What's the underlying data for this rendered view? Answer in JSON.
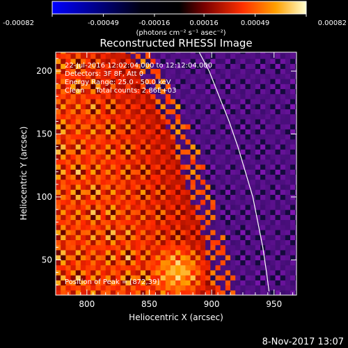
{
  "chart_data": {
    "type": "heatmap",
    "title": "Reconstructed RHESSI Image",
    "xlabel": "Heliocentric X (arcsec)",
    "ylabel": "Heliocentric Y (arcsec)",
    "x_ticks": [
      800,
      850,
      900,
      950
    ],
    "y_ticks": [
      50,
      100,
      150,
      200
    ],
    "xlim": [
      775,
      968
    ],
    "ylim": [
      22,
      215
    ],
    "colorbar": {
      "ticks": [
        "-0.00082",
        "-0.00049",
        "-0.00016",
        "0.00016",
        "0.00049",
        "0.00082"
      ],
      "range": [
        -0.00082,
        0.00082
      ],
      "units": "(photons cm⁻² s⁻¹ asec⁻²)",
      "colormap": [
        "#0000ff",
        "#000000",
        "#7a0000",
        "#ff3000",
        "#ffa000",
        "#ffffd0"
      ]
    },
    "annotations": [
      "22-Jul-2016 12:02:04.000 to 12:12:04.000",
      "Detectors: 3F 8F, Att 0",
      "Energy Range: 25.0 - 50.0 keV",
      "Clean     Total counts: 2.86E+03"
    ],
    "peak_label": "Position of Peak = [872,39]",
    "limb_curve": [
      [
        946,
        25
      ],
      [
        944,
        40
      ],
      [
        941,
        60
      ],
      [
        937,
        80
      ],
      [
        933,
        100
      ],
      [
        927,
        120
      ],
      [
        921,
        140
      ],
      [
        914,
        160
      ],
      [
        906,
        180
      ],
      [
        898,
        200
      ],
      [
        890,
        215
      ]
    ],
    "pixel_size_arcsec": 4,
    "features": {
      "bright_region_edge": [
        [
          900,
          25
        ],
        [
          893,
          60
        ],
        [
          880,
          100
        ],
        [
          868,
          140
        ],
        [
          850,
          180
        ],
        [
          830,
          215
        ]
      ],
      "peak": [
        872,
        39
      ]
    }
  },
  "footer": {
    "date": "8-Nov-2017 13:07"
  }
}
